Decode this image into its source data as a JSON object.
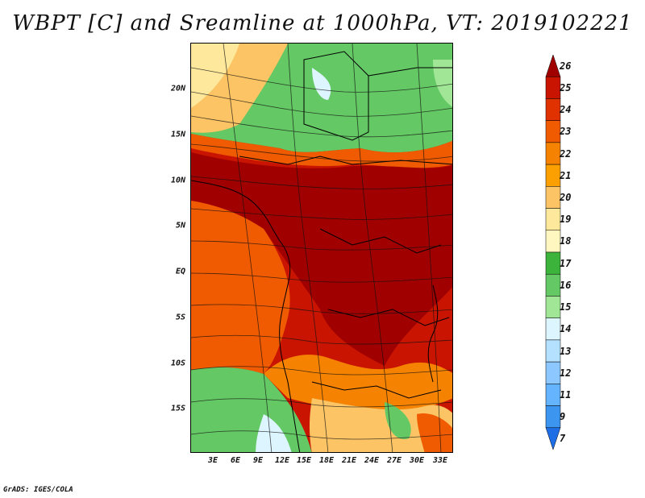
{
  "title": "WBPT [C] and Sreamline at 1000hPa, VT: 2019102221",
  "credit": "GrADS: IGES/COLA",
  "axes": {
    "lat_labels": [
      "20N",
      "15N",
      "10N",
      "5N",
      "EQ",
      "5S",
      "10S",
      "15S"
    ],
    "lon_labels": [
      "3E",
      "6E",
      "9E",
      "12E",
      "15E",
      "18E",
      "21E",
      "24E",
      "27E",
      "30E",
      "33E"
    ]
  },
  "colorbar": {
    "labels": [
      "26",
      "25",
      "24",
      "23",
      "22",
      "21",
      "20",
      "19",
      "18",
      "17",
      "16",
      "15",
      "14",
      "13",
      "12",
      "11",
      "9",
      "7"
    ],
    "colors": [
      "#a00000",
      "#c81400",
      "#e03200",
      "#f05a00",
      "#f58200",
      "#fba000",
      "#fcc464",
      "#fde89c",
      "#fff6c0",
      "#3cb43c",
      "#64c864",
      "#a0e696",
      "#dcf5ff",
      "#b4e1ff",
      "#8cc8ff",
      "#64b4ff",
      "#3c96f0",
      "#1e6ee6"
    ]
  },
  "legend": {
    "warm": "#b01600",
    "hot": "#a00000",
    "orange": "#f05a00",
    "green": "#64c864",
    "light_green": "#a0e696",
    "yellow": "#fcc464",
    "pale": "#fde89c"
  }
}
